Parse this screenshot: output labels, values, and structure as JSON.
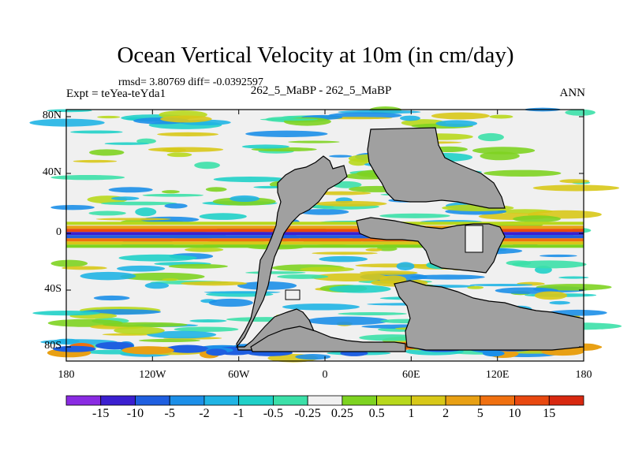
{
  "title": "Ocean Vertical Velocity at 10m (in cm/day)",
  "stats": "rmsd= 3.80769 diff= -0.0392597",
  "experiment": "Expt = teYea-teYda1",
  "case_label": "262_5_MaBP - 262_5_MaBP",
  "season": "ANN",
  "lat_ticks": [
    "80N",
    "40N",
    "0",
    "40S",
    "80S"
  ],
  "lon_ticks": [
    "180",
    "120W",
    "60W",
    "0",
    "60E",
    "120E",
    "180"
  ],
  "colorbar": {
    "labels": [
      "-15",
      "-10",
      "-5",
      "-2",
      "-1",
      "-0.5",
      "-0.25",
      "0.25",
      "0.5",
      "1",
      "2",
      "5",
      "10",
      "15"
    ],
    "colors": [
      "#8a2be2",
      "#3b1fd0",
      "#1f5fe0",
      "#1c8fe8",
      "#20b4e4",
      "#20d0c8",
      "#3ce0a8",
      "#f0f0f0",
      "#7ed321",
      "#b8d81c",
      "#d8c818",
      "#e8a014",
      "#f07010",
      "#e84810",
      "#d82810"
    ]
  },
  "land_color": "#a0a0a0"
}
